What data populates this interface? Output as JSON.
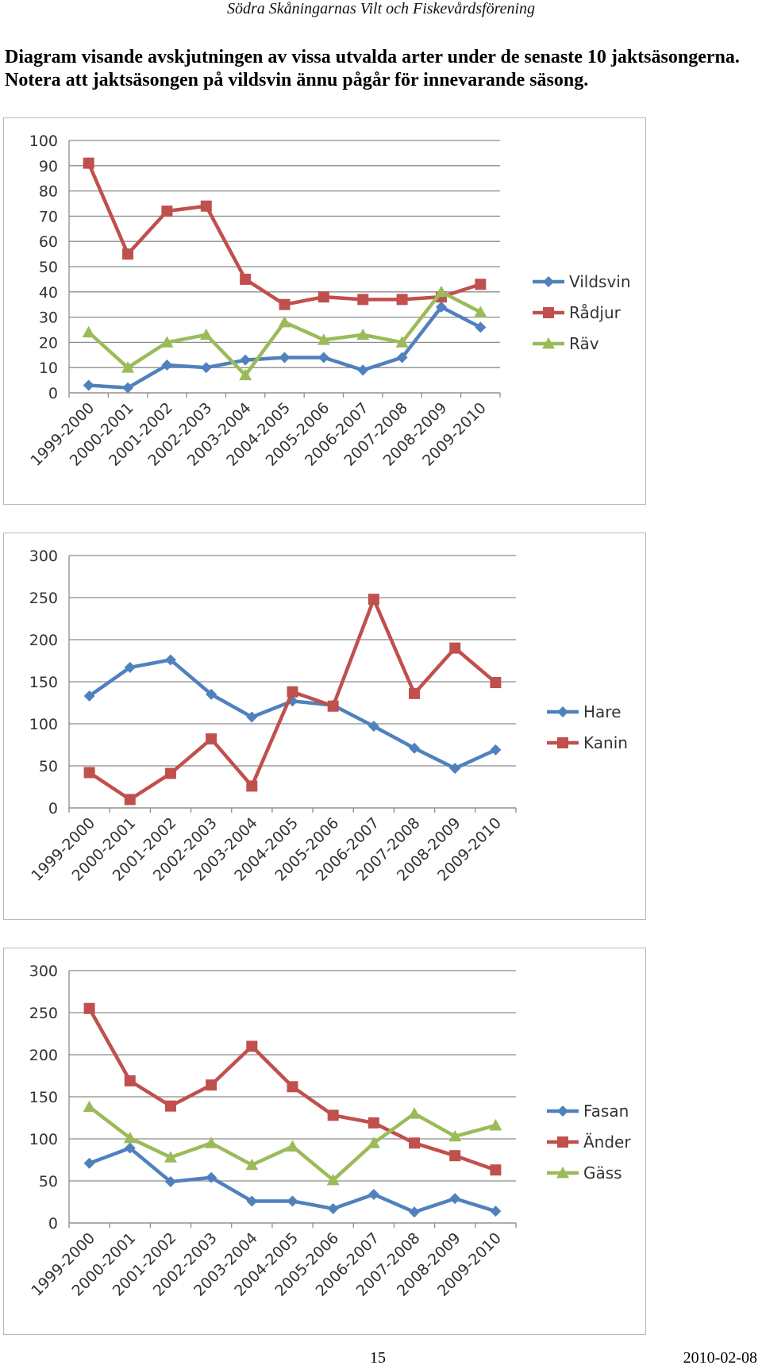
{
  "header": {
    "text": "Södra Skåningarnas Vilt och Fiskevårdsförening"
  },
  "intro": {
    "line1": "Diagram visande avskjutningen av vissa utvalda arter under de senaste 10 jaktsäsongerna.",
    "line2": "Notera att jaktsäsongen på vildsvin ännu pågår för innevarande säsong."
  },
  "footer": {
    "page": "15",
    "date": "2010-02-08"
  },
  "colors": {
    "blue": "#4f81bd",
    "red": "#c0504d",
    "green": "#9bbb59",
    "grid": "#8c8c8c",
    "axis": "#8c8c8c"
  },
  "chart_data": [
    {
      "type": "line",
      "title": "",
      "xlabel": "",
      "ylabel": "",
      "categories": [
        "1999-2000",
        "2000-2001",
        "2001-2002",
        "2002-2003",
        "2003-2004",
        "2004-2005",
        "2005-2006",
        "2006-2007",
        "2007-2008",
        "2008-2009",
        "2009-2010"
      ],
      "ylim": [
        0,
        100
      ],
      "yticks": [
        0,
        10,
        20,
        30,
        40,
        50,
        60,
        70,
        80,
        90,
        100
      ],
      "grid": true,
      "legend": "right",
      "series": [
        {
          "name": "Vildsvin",
          "marker": "diamond",
          "color": "#4f81bd",
          "values": [
            3,
            2,
            11,
            10,
            13,
            14,
            14,
            9,
            14,
            34,
            26
          ]
        },
        {
          "name": "Rådjur",
          "marker": "square",
          "color": "#c0504d",
          "values": [
            91,
            55,
            72,
            74,
            45,
            35,
            38,
            37,
            37,
            38,
            43
          ]
        },
        {
          "name": "Räv",
          "marker": "triangle",
          "color": "#9bbb59",
          "values": [
            24,
            10,
            20,
            23,
            7,
            28,
            21,
            23,
            20,
            40,
            32
          ]
        }
      ]
    },
    {
      "type": "line",
      "title": "",
      "xlabel": "",
      "ylabel": "",
      "categories": [
        "1999-2000",
        "2000-2001",
        "2001-2002",
        "2002-2003",
        "2003-2004",
        "2004-2005",
        "2005-2006",
        "2006-2007",
        "2007-2008",
        "2008-2009",
        "2009-2010"
      ],
      "ylim": [
        0,
        300
      ],
      "yticks": [
        0,
        50,
        100,
        150,
        200,
        250,
        300
      ],
      "grid": true,
      "legend": "right",
      "series": [
        {
          "name": "Hare",
          "marker": "diamond",
          "color": "#4f81bd",
          "values": [
            133,
            167,
            176,
            135,
            108,
            127,
            122,
            97,
            71,
            47,
            69
          ]
        },
        {
          "name": "Kanin",
          "marker": "square",
          "color": "#c0504d",
          "values": [
            42,
            10,
            41,
            82,
            26,
            138,
            121,
            248,
            136,
            190,
            149
          ]
        }
      ]
    },
    {
      "type": "line",
      "title": "",
      "xlabel": "",
      "ylabel": "",
      "categories": [
        "1999-2000",
        "2000-2001",
        "2001-2002",
        "2002-2003",
        "2003-2004",
        "2004-2005",
        "2005-2006",
        "2006-2007",
        "2007-2008",
        "2008-2009",
        "2009-2010"
      ],
      "ylim": [
        0,
        300
      ],
      "yticks": [
        0,
        50,
        100,
        150,
        200,
        250,
        300
      ],
      "grid": true,
      "legend": "right",
      "series": [
        {
          "name": "Fasan",
          "marker": "diamond",
          "color": "#4f81bd",
          "values": [
            71,
            89,
            49,
            54,
            26,
            26,
            17,
            34,
            13,
            29,
            14
          ]
        },
        {
          "name": "Änder",
          "marker": "square",
          "color": "#c0504d",
          "values": [
            255,
            169,
            139,
            164,
            210,
            162,
            128,
            119,
            95,
            80,
            63
          ]
        },
        {
          "name": "Gäss",
          "marker": "triangle",
          "color": "#9bbb59",
          "values": [
            138,
            101,
            78,
            95,
            69,
            91,
            51,
            95,
            130,
            103,
            116
          ]
        }
      ]
    }
  ]
}
